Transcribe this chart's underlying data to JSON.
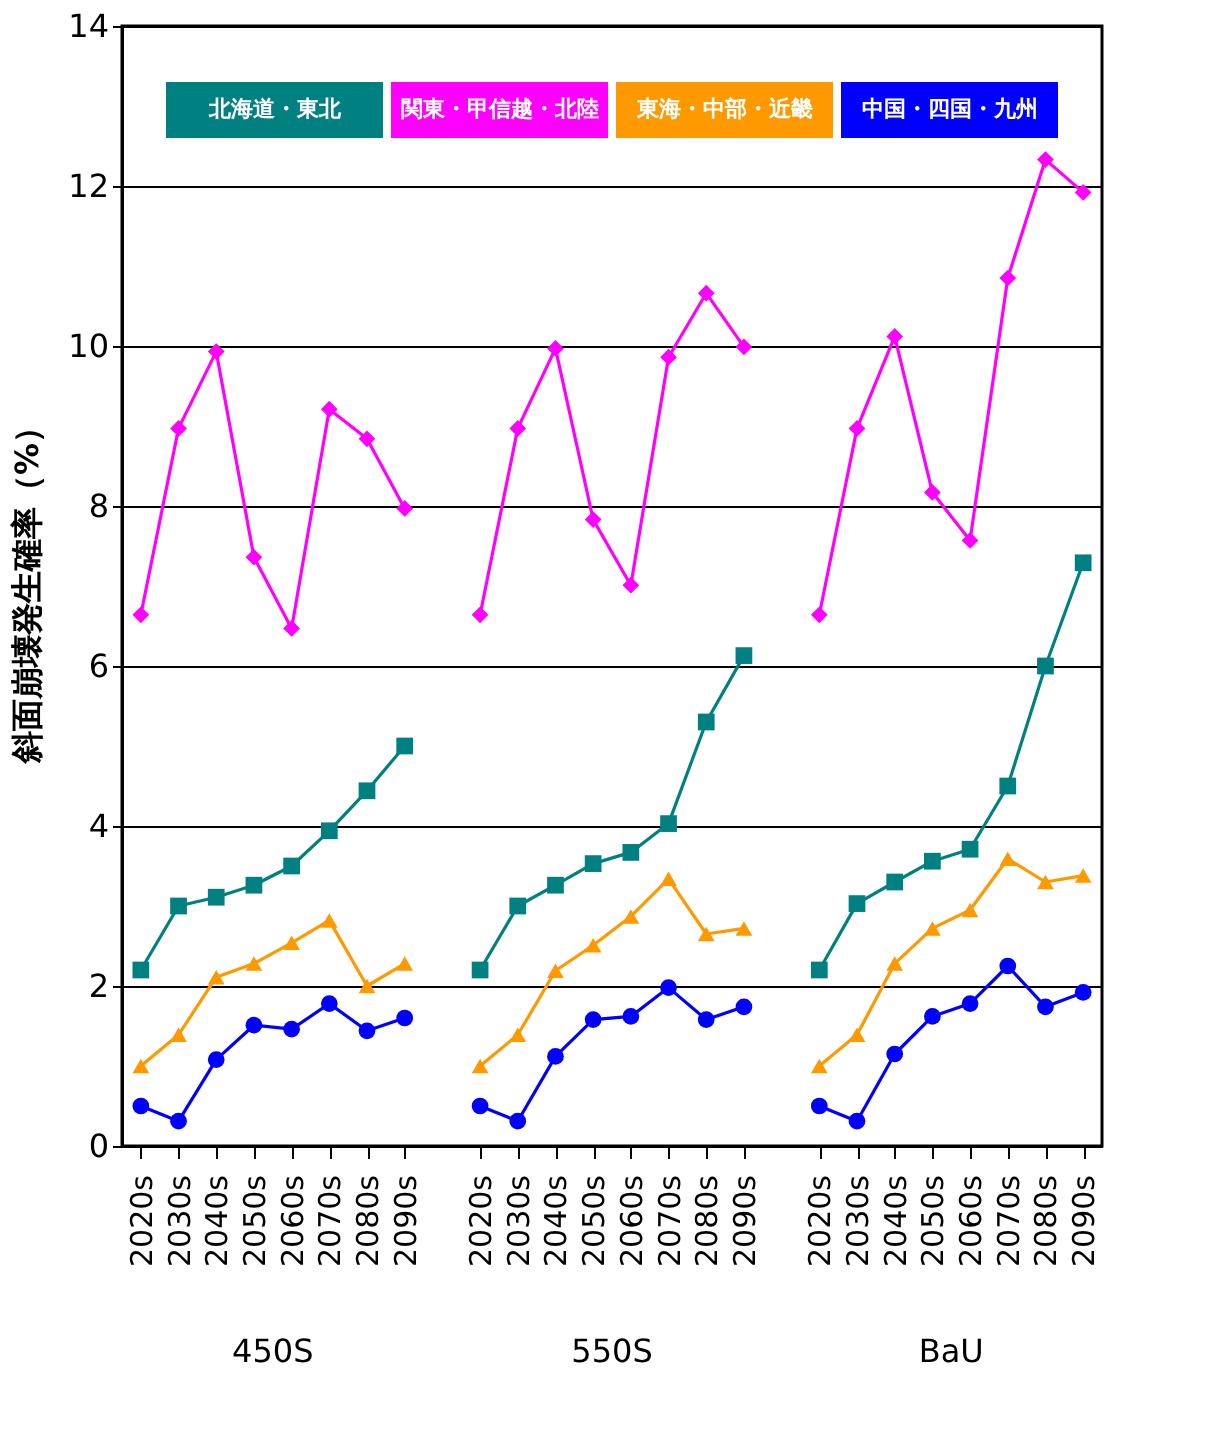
{
  "chart_data": {
    "type": "line",
    "ylabel": "斜面崩壊発生確率（%）",
    "categories": [
      "2020s",
      "2030s",
      "2040s",
      "2050s",
      "2060s",
      "2070s",
      "2080s",
      "2090s",
      null,
      "2020s",
      "2030s",
      "2040s",
      "2050s",
      "2060s",
      "2070s",
      "2080s",
      "2090s",
      null,
      "2020s",
      "2030s",
      "2040s",
      "2050s",
      "2060s",
      "2070s",
      "2080s",
      "2090s"
    ],
    "annotations": [
      "450S",
      "550S",
      "BaU"
    ],
    "series": [
      {
        "name": "北海道・東北",
        "color": "#008080",
        "marker": "square",
        "values": [
          2.2,
          3.0,
          3.11,
          3.26,
          3.5,
          3.94,
          4.44,
          5.0,
          null,
          2.2,
          3.0,
          3.26,
          3.53,
          3.67,
          4.03,
          5.3,
          6.13,
          null,
          2.2,
          3.03,
          3.3,
          3.56,
          3.71,
          4.5,
          6.0,
          7.29
        ]
      },
      {
        "name": "関東・甲信越・北陸",
        "color": "#ff00ff",
        "marker": "diamond",
        "values": [
          6.64,
          8.97,
          9.93,
          7.36,
          6.47,
          9.21,
          8.84,
          7.97,
          null,
          6.64,
          8.97,
          9.97,
          7.83,
          7.01,
          9.86,
          10.66,
          9.99,
          null,
          6.64,
          8.97,
          10.12,
          8.17,
          7.57,
          10.85,
          12.33,
          11.92
        ]
      },
      {
        "name": "東海・中部・近畿",
        "color": "#ff9900",
        "marker": "triangle",
        "values": [
          1.0,
          1.39,
          2.11,
          2.28,
          2.54,
          2.82,
          2.0,
          2.28,
          null,
          1.0,
          1.39,
          2.19,
          2.51,
          2.87,
          3.34,
          2.65,
          2.72,
          null,
          1.0,
          1.39,
          2.28,
          2.72,
          2.95,
          3.59,
          3.3,
          3.38
        ]
      },
      {
        "name": "中国・四国・九州",
        "color": "#0000ff",
        "marker": "circle",
        "values": [
          0.5,
          0.31,
          1.08,
          1.51,
          1.46,
          1.78,
          1.44,
          1.6,
          null,
          0.5,
          0.31,
          1.12,
          1.58,
          1.62,
          1.98,
          1.58,
          1.74,
          null,
          0.5,
          0.31,
          1.15,
          1.62,
          1.78,
          2.25,
          1.74,
          1.92
        ]
      }
    ],
    "ylim": [
      0,
      14
    ],
    "yticks": [
      0,
      2,
      4,
      6,
      8,
      10,
      12,
      14
    ],
    "grid": "y",
    "legend": "top",
    "line_style": "solid"
  }
}
